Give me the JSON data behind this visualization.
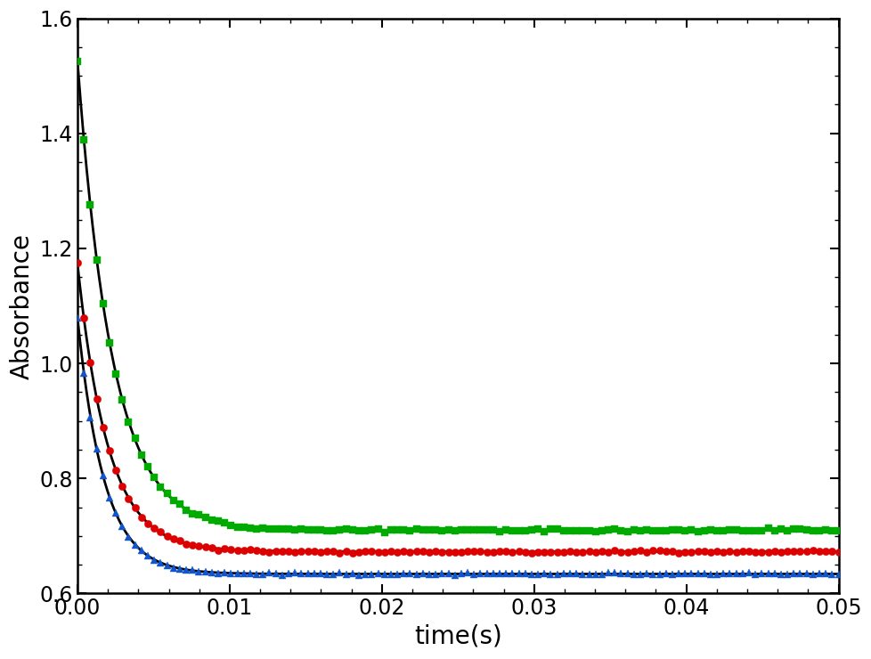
{
  "title": "",
  "xlabel": "time(s)",
  "ylabel": "Absorbance",
  "xlim": [
    0,
    0.05
  ],
  "ylim": [
    0.6,
    1.6
  ],
  "yticks": [
    0.6,
    0.8,
    1.0,
    1.2,
    1.4,
    1.6
  ],
  "xticks": [
    0.0,
    0.01,
    0.02,
    0.03,
    0.04,
    0.05
  ],
  "series": [
    {
      "name": "green",
      "color": "#00aa00",
      "marker": "s",
      "A": 0.815,
      "tau": 0.0023,
      "C": 0.71,
      "data_noise": 0.0012
    },
    {
      "name": "red",
      "color": "#dd0000",
      "marker": "o",
      "A": 0.5,
      "tau": 0.002,
      "C": 0.673,
      "data_noise": 0.001
    },
    {
      "name": "blue",
      "color": "#1155cc",
      "marker": "^",
      "A": 0.445,
      "tau": 0.00175,
      "C": 0.634,
      "data_noise": 0.001
    }
  ],
  "fit_color": "#000000",
  "fit_linewidth": 2.0,
  "marker_size": 6,
  "marker_linewidth": 0.3,
  "xlabel_fontsize": 20,
  "ylabel_fontsize": 20,
  "tick_fontsize": 17,
  "background_color": "#ffffff",
  "n_fit_points": 1000
}
